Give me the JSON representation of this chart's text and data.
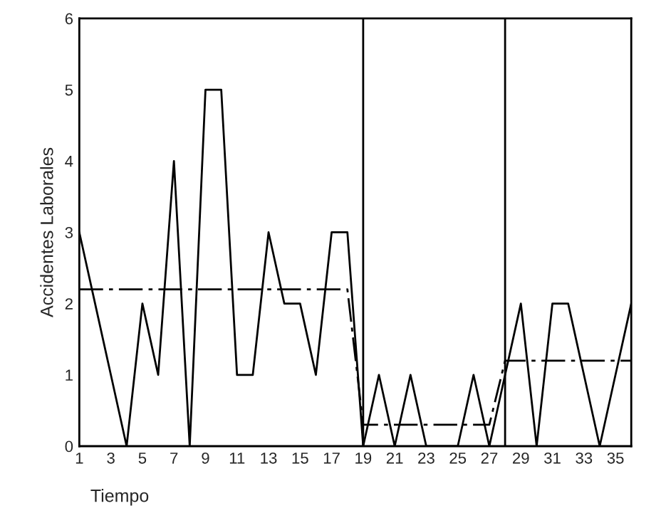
{
  "chart_data": {
    "type": "line",
    "xlabel": "Tiempo",
    "ylabel": "Accidentes Laborales",
    "x": [
      1,
      2,
      3,
      4,
      5,
      6,
      7,
      8,
      9,
      10,
      11,
      12,
      13,
      14,
      15,
      16,
      17,
      18,
      19,
      20,
      21,
      22,
      23,
      24,
      25,
      26,
      27,
      28,
      29,
      30,
      31,
      32,
      33,
      34,
      35,
      36
    ],
    "series": [
      {
        "color": "#000000",
        "line_style": "solid",
        "values": [
          3,
          2,
          1,
          0,
          2,
          1,
          4,
          0,
          5,
          5,
          1,
          1,
          3,
          2,
          2,
          1,
          3,
          3,
          0,
          1,
          0,
          1,
          0,
          0,
          0,
          1,
          0,
          1,
          2,
          0,
          2,
          2,
          1,
          0,
          1,
          2
        ]
      },
      {
        "color": "#000000",
        "line_style": "dashed",
        "values": [
          2.2,
          2.2,
          2.2,
          2.2,
          2.2,
          2.2,
          2.2,
          2.2,
          2.2,
          2.2,
          2.2,
          2.2,
          2.2,
          2.2,
          2.2,
          2.2,
          2.2,
          2.2,
          0.3,
          0.3,
          0.3,
          0.3,
          0.3,
          0.3,
          0.3,
          0.3,
          0.3,
          1.2,
          1.2,
          1.2,
          1.2,
          1.2,
          1.2,
          1.2,
          1.2,
          1.2
        ]
      }
    ],
    "xlim": [
      1,
      36
    ],
    "xticks": [
      1,
      3,
      5,
      7,
      9,
      11,
      13,
      15,
      17,
      19,
      21,
      23,
      25,
      27,
      29,
      31,
      33,
      35
    ],
    "ylim": [
      0,
      6
    ],
    "yticks": [
      0,
      1,
      2,
      3,
      4,
      5,
      6
    ],
    "ref_lines": [
      {
        "axis": "x",
        "value": 19,
        "color": "#000000"
      },
      {
        "axis": "x",
        "value": 28,
        "color": "#000000"
      }
    ],
    "grid": false,
    "marker": "none"
  }
}
